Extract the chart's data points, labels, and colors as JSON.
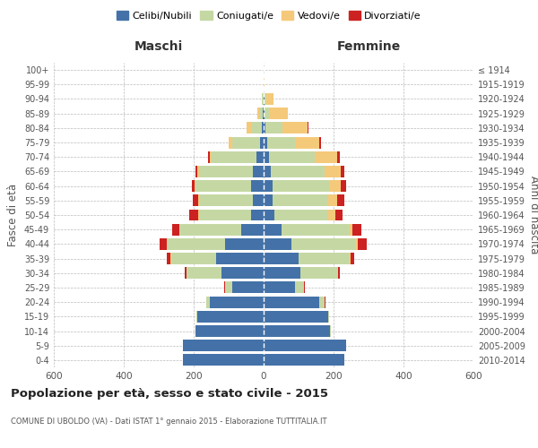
{
  "age_groups": [
    "0-4",
    "5-9",
    "10-14",
    "15-19",
    "20-24",
    "25-29",
    "30-34",
    "35-39",
    "40-44",
    "45-49",
    "50-54",
    "55-59",
    "60-64",
    "65-69",
    "70-74",
    "75-79",
    "80-84",
    "85-89",
    "90-94",
    "95-99",
    "100+"
  ],
  "birth_years": [
    "2010-2014",
    "2005-2009",
    "2000-2004",
    "1995-1999",
    "1990-1994",
    "1985-1989",
    "1980-1984",
    "1975-1979",
    "1970-1974",
    "1965-1969",
    "1960-1964",
    "1955-1959",
    "1950-1954",
    "1945-1949",
    "1940-1944",
    "1935-1939",
    "1930-1934",
    "1925-1929",
    "1920-1924",
    "1915-1919",
    "≤ 1914"
  ],
  "males": {
    "celibi": [
      230,
      230,
      195,
      190,
      155,
      90,
      120,
      135,
      110,
      65,
      35,
      30,
      35,
      30,
      20,
      10,
      5,
      2,
      1,
      0,
      0
    ],
    "coniugati": [
      0,
      0,
      1,
      2,
      10,
      20,
      100,
      130,
      165,
      175,
      150,
      155,
      160,
      155,
      130,
      80,
      30,
      10,
      3,
      0,
      0
    ],
    "vedovi": [
      0,
      0,
      0,
      0,
      0,
      0,
      1,
      1,
      2,
      2,
      2,
      2,
      3,
      5,
      5,
      10,
      15,
      5,
      1,
      0,
      0
    ],
    "divorziati": [
      0,
      0,
      0,
      0,
      0,
      3,
      5,
      12,
      20,
      20,
      25,
      15,
      8,
      5,
      3,
      0,
      0,
      0,
      0,
      0,
      0
    ]
  },
  "females": {
    "nubili": [
      230,
      235,
      190,
      185,
      160,
      90,
      105,
      100,
      80,
      50,
      30,
      25,
      25,
      20,
      15,
      10,
      5,
      3,
      2,
      1,
      0
    ],
    "coniugate": [
      0,
      0,
      2,
      3,
      15,
      25,
      105,
      145,
      185,
      195,
      155,
      160,
      165,
      155,
      130,
      80,
      50,
      15,
      5,
      0,
      0
    ],
    "vedove": [
      0,
      0,
      0,
      0,
      0,
      1,
      2,
      3,
      5,
      10,
      20,
      25,
      30,
      45,
      65,
      70,
      70,
      50,
      20,
      2,
      0
    ],
    "divorziate": [
      0,
      0,
      0,
      0,
      1,
      3,
      5,
      10,
      25,
      25,
      20,
      20,
      15,
      10,
      8,
      5,
      2,
      1,
      1,
      0,
      0
    ]
  },
  "colors": {
    "celibi": "#4472a8",
    "coniugati": "#c5d8a4",
    "vedovi": "#f5c97a",
    "divorziati": "#cc2222"
  },
  "title": "Popolazione per età, sesso e stato civile - 2015",
  "subtitle": "COMUNE DI UBOLDO (VA) - Dati ISTAT 1° gennaio 2015 - Elaborazione TUTTITALIA.IT",
  "xlim": 600,
  "xlabel_maschi": "Maschi",
  "xlabel_femmine": "Femmine",
  "ylabel_left": "Fasce di età",
  "ylabel_right": "Anni di nascita",
  "legend_labels": [
    "Celibi/Nubili",
    "Coniugati/e",
    "Vedovi/e",
    "Divorziati/e"
  ],
  "bg_color": "#ffffff",
  "grid_color": "#bbbbbb"
}
